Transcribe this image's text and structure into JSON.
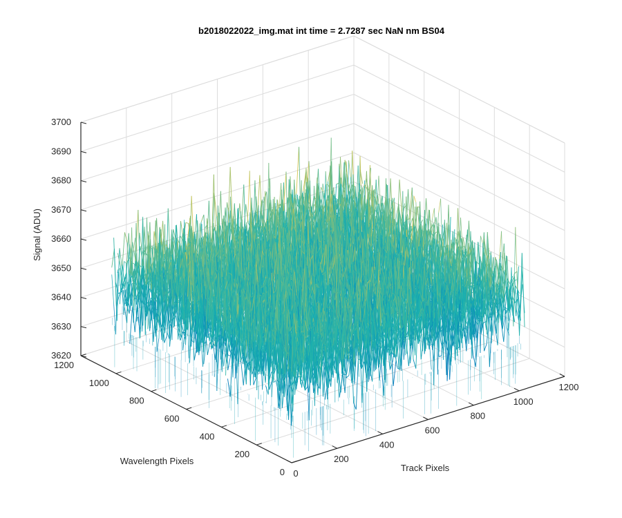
{
  "chart_data": {
    "type": "surface",
    "title": "b2018022022_img.mat int time = 2.7287 sec  NaN nm BS04",
    "xlabel": "Track Pixels",
    "ylabel": "Wavelength Pixels",
    "zlabel": "Signal (ADU)",
    "xlim": [
      0,
      1200
    ],
    "ylim": [
      0,
      1200
    ],
    "zlim": [
      3620,
      3700
    ],
    "x_ticks": [
      "0",
      "200",
      "400",
      "600",
      "800",
      "1000",
      "1200"
    ],
    "y_ticks": [
      "0",
      "200",
      "400",
      "600",
      "800",
      "1000",
      "1200"
    ],
    "z_ticks": [
      "3620",
      "3630",
      "3640",
      "3650",
      "3660",
      "3670",
      "3680",
      "3690",
      "3700"
    ],
    "grid": true,
    "colormap": "parula",
    "surface": {
      "x_range": [
        0,
        1024
      ],
      "y_range": [
        0,
        1024
      ],
      "mean_signal": 3652,
      "noise_std_adu": 8,
      "max_signal": 3695,
      "min_signal": 3621
    },
    "colors": {
      "axis": "#262626",
      "grid": "#dcdcdc",
      "low": "#0072bd",
      "mid": "#1ab2b0",
      "high": "#e6c84a"
    }
  }
}
